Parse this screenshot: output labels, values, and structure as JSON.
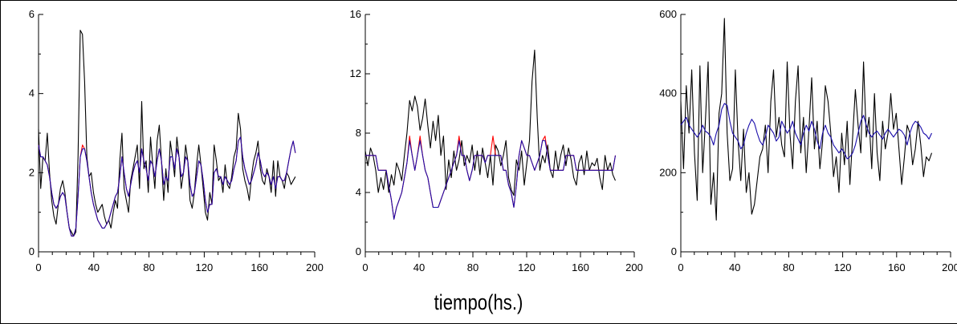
{
  "figure": {
    "xlabel": "tiempo(hs.)"
  },
  "colors": {
    "observed": "#000000",
    "model_a": "#ff0000",
    "model_b": "#1a0dab"
  },
  "chart_data": [
    {
      "type": "line",
      "xlim": [
        0,
        200
      ],
      "ylim": [
        0,
        6
      ],
      "xticks": [
        0,
        40,
        80,
        120,
        160,
        200
      ],
      "yticks": [
        0,
        2,
        4,
        6
      ],
      "grid": false,
      "series": [
        {
          "color": "#000000",
          "values": [
            3.1,
            1.6,
            2.4,
            2.3,
            3.0,
            2.0,
            1.3,
            0.9,
            0.7,
            1.2,
            1.6,
            1.8,
            1.5,
            1.0,
            0.6,
            0.5,
            0.4,
            0.5,
            2.4,
            5.6,
            5.5,
            4.3,
            2.4,
            1.9,
            2.0,
            1.5,
            1.2,
            1.0,
            1.1,
            1.2,
            0.9,
            0.7,
            0.8,
            0.6,
            1.0,
            1.3,
            1.1,
            2.3,
            3.0,
            1.6,
            1.3,
            1.0,
            1.8,
            2.1,
            2.4,
            2.7,
            1.6,
            3.8,
            2.1,
            2.3,
            1.5,
            2.9,
            2.2,
            1.6,
            2.8,
            3.2,
            2.3,
            1.3,
            2.1,
            1.5,
            2.8,
            2.4,
            1.9,
            2.9,
            2.4,
            1.6,
            2.0,
            2.7,
            2.3,
            1.3,
            1.1,
            1.5,
            2.2,
            2.7,
            2.2,
            1.6,
            1.0,
            0.8,
            1.5,
            1.2,
            2.7,
            2.3,
            1.8,
            1.9,
            1.5,
            2.2,
            1.7,
            1.6,
            1.9,
            2.4,
            2.6,
            3.5,
            3.1,
            2.1,
            1.8,
            1.6,
            1.3,
            1.9,
            2.3,
            2.5,
            2.8,
            2.1,
            1.8,
            1.7,
            2.1,
            1.9,
            1.5,
            2.3,
            1.4,
            2.3,
            1.9,
            1.8,
            1.6,
            2.0,
            1.9,
            1.7,
            1.8,
            1.9
          ]
        },
        {
          "color": "#ff0000",
          "values": [
            2.7,
            2.4,
            2.4,
            2.3,
            2.2,
            1.9,
            1.5,
            1.2,
            1.1,
            1.2,
            1.4,
            1.5,
            1.4,
            1.0,
            0.6,
            0.4,
            0.4,
            0.6,
            1.4,
            2.4,
            2.7,
            2.6,
            2.3,
            1.9,
            1.5,
            1.2,
            1.0,
            0.8,
            0.7,
            0.6,
            0.6,
            0.7,
            0.8,
            1.0,
            1.2,
            1.4,
            1.5,
            1.9,
            2.4,
            2.0,
            1.6,
            1.4,
            1.7,
            2.0,
            2.2,
            2.3,
            2.0,
            2.6,
            2.3,
            2.1,
            1.8,
            2.3,
            2.2,
            1.9,
            2.3,
            2.6,
            2.3,
            1.7,
            1.9,
            1.8,
            2.4,
            2.4,
            2.1,
            2.6,
            2.4,
            1.9,
            2.0,
            2.4,
            2.3,
            1.7,
            1.4,
            1.5,
            1.9,
            2.3,
            2.2,
            1.8,
            1.3,
            1.0,
            1.2,
            1.2,
            2.0,
            2.1,
            1.9,
            1.9,
            1.7,
            1.9,
            1.8,
            1.7,
            1.8,
            2.1,
            2.3,
            2.8,
            2.9,
            2.4,
            2.1,
            1.9,
            1.7,
            1.8,
            2.0,
            2.2,
            2.5,
            2.3,
            2.0,
            1.9,
            2.0,
            1.9,
            1.7,
            1.9,
            1.6,
            1.9,
            1.9,
            1.8,
            1.8,
            2.0,
            2.3,
            2.6,
            2.8,
            2.5
          ]
        },
        {
          "color": "#1a0dab",
          "values": [
            2.7,
            2.4,
            2.4,
            2.3,
            2.2,
            1.9,
            1.5,
            1.2,
            1.1,
            1.2,
            1.4,
            1.5,
            1.4,
            1.0,
            0.6,
            0.4,
            0.4,
            0.6,
            1.4,
            2.4,
            2.6,
            2.6,
            2.3,
            1.9,
            1.5,
            1.2,
            1.0,
            0.8,
            0.7,
            0.6,
            0.6,
            0.7,
            0.8,
            1.0,
            1.2,
            1.4,
            1.5,
            1.9,
            2.4,
            2.0,
            1.6,
            1.4,
            1.7,
            2.0,
            2.2,
            2.3,
            2.0,
            2.6,
            2.3,
            2.1,
            1.8,
            2.3,
            2.2,
            1.9,
            2.3,
            2.6,
            2.3,
            1.7,
            1.9,
            1.8,
            2.4,
            2.4,
            2.1,
            2.6,
            2.4,
            1.9,
            2.0,
            2.4,
            2.3,
            1.7,
            1.4,
            1.5,
            1.9,
            2.3,
            2.2,
            1.8,
            1.3,
            1.0,
            1.2,
            1.2,
            2.0,
            2.1,
            1.9,
            1.9,
            1.7,
            1.9,
            1.8,
            1.7,
            1.8,
            2.1,
            2.3,
            2.8,
            2.9,
            2.4,
            2.1,
            1.9,
            1.7,
            1.8,
            2.0,
            2.2,
            2.5,
            2.3,
            2.0,
            1.9,
            2.0,
            1.9,
            1.7,
            1.9,
            1.6,
            1.9,
            1.9,
            1.8,
            1.8,
            2.0,
            2.3,
            2.6,
            2.8,
            2.5
          ]
        }
      ]
    },
    {
      "type": "line",
      "xlim": [
        0,
        200
      ],
      "ylim": [
        0,
        16
      ],
      "xticks": [
        0,
        40,
        80,
        120,
        160,
        200
      ],
      "yticks": [
        0,
        4,
        8,
        12,
        16
      ],
      "grid": false,
      "series": [
        {
          "color": "#000000",
          "values": [
            6.8,
            5.8,
            7.0,
            6.5,
            5.5,
            4.0,
            5.0,
            4.2,
            5.5,
            4.0,
            5.2,
            4.5,
            6.0,
            5.5,
            4.8,
            6.5,
            8.0,
            10.2,
            9.5,
            10.5,
            9.8,
            8.2,
            9.0,
            10.3,
            8.5,
            7.0,
            8.8,
            7.5,
            9.2,
            6.5,
            7.8,
            4.2,
            6.2,
            5.0,
            6.8,
            5.5,
            6.2,
            7.5,
            5.8,
            6.5,
            6.0,
            7.2,
            5.5,
            6.8,
            5.2,
            7.0,
            6.0,
            5.0,
            6.5,
            4.5,
            7.2,
            6.8,
            5.8,
            6.5,
            7.5,
            5.0,
            4.2,
            3.8,
            6.2,
            5.5,
            6.8,
            4.5,
            6.0,
            7.5,
            11.5,
            13.6,
            9.0,
            5.5,
            6.5,
            6.0,
            7.2,
            5.5,
            5.0,
            6.8,
            5.5,
            6.5,
            7.2,
            5.8,
            7.0,
            6.2,
            5.0,
            4.5,
            6.0,
            6.5,
            5.2,
            6.8,
            5.5,
            6.0,
            5.8,
            6.3,
            5.0,
            4.2,
            6.5,
            5.5,
            6.0,
            5.2,
            4.8
          ]
        },
        {
          "color": "#ff0000",
          "values": [
            6.5,
            6.5,
            6.5,
            6.5,
            6.5,
            5.5,
            5.5,
            5.5,
            5.5,
            4.5,
            3.5,
            2.2,
            3.0,
            3.5,
            4.0,
            5.0,
            6.0,
            7.8,
            6.5,
            5.5,
            6.5,
            7.8,
            6.5,
            5.5,
            5.0,
            4.0,
            3.0,
            3.0,
            3.0,
            3.5,
            4.0,
            4.5,
            5.0,
            5.5,
            6.0,
            6.5,
            7.8,
            6.5,
            6.5,
            5.5,
            4.8,
            5.5,
            6.5,
            6.5,
            6.5,
            6.5,
            6.0,
            6.5,
            6.5,
            7.8,
            6.5,
            6.5,
            6.5,
            5.5,
            5.5,
            4.5,
            4.0,
            3.0,
            4.5,
            6.5,
            7.5,
            7.0,
            6.5,
            6.5,
            6.0,
            5.5,
            6.0,
            6.5,
            7.5,
            7.8,
            6.5,
            5.5,
            5.5,
            5.5,
            5.5,
            5.5,
            5.5,
            6.5,
            6.5,
            6.5,
            6.5,
            5.5,
            5.5,
            5.5,
            5.5,
            5.5,
            5.5,
            5.5,
            5.5,
            5.5,
            5.5,
            5.5,
            5.5,
            5.5,
            5.5,
            5.5,
            6.5
          ]
        },
        {
          "color": "#1a0dab",
          "values": [
            6.5,
            6.5,
            6.5,
            6.5,
            6.5,
            5.5,
            5.5,
            5.5,
            5.5,
            4.5,
            3.5,
            2.2,
            3.0,
            3.5,
            4.0,
            5.0,
            6.0,
            7.5,
            6.5,
            5.5,
            6.5,
            7.5,
            6.5,
            5.5,
            5.0,
            4.0,
            3.0,
            3.0,
            3.0,
            3.5,
            4.0,
            4.5,
            5.0,
            5.5,
            6.0,
            6.5,
            7.5,
            6.5,
            6.5,
            5.5,
            4.8,
            5.5,
            6.5,
            6.5,
            6.5,
            6.5,
            6.0,
            6.5,
            6.5,
            6.5,
            6.5,
            6.5,
            6.5,
            5.5,
            5.5,
            4.5,
            4.0,
            3.0,
            4.5,
            6.5,
            7.5,
            7.0,
            6.5,
            6.5,
            6.0,
            5.5,
            6.0,
            6.5,
            7.5,
            7.5,
            6.5,
            5.5,
            5.5,
            5.5,
            5.5,
            5.5,
            5.5,
            6.5,
            6.5,
            6.5,
            6.5,
            5.5,
            5.5,
            5.5,
            5.5,
            5.5,
            5.5,
            5.5,
            5.5,
            5.5,
            5.5,
            5.5,
            5.5,
            5.5,
            5.5,
            5.5,
            6.5
          ]
        }
      ]
    },
    {
      "type": "line",
      "xlim": [
        0,
        200
      ],
      "ylim": [
        0,
        600
      ],
      "xticks": [
        0,
        40,
        80,
        120,
        160,
        200
      ],
      "yticks": [
        0,
        200,
        400,
        600
      ],
      "grid": false,
      "series": [
        {
          "color": "#000000",
          "values": [
            380,
            210,
            420,
            300,
            460,
            250,
            130,
            470,
            200,
            330,
            480,
            120,
            200,
            80,
            350,
            400,
            590,
            300,
            180,
            210,
            460,
            280,
            180,
            310,
            150,
            200,
            95,
            120,
            180,
            240,
            260,
            320,
            200,
            380,
            460,
            290,
            340,
            270,
            240,
            480,
            300,
            210,
            380,
            470,
            250,
            340,
            200,
            310,
            440,
            260,
            330,
            210,
            280,
            420,
            380,
            300,
            190,
            240,
            150,
            300,
            220,
            330,
            170,
            290,
            410,
            320,
            250,
            480,
            290,
            340,
            210,
            400,
            250,
            180,
            330,
            260,
            300,
            400,
            310,
            350,
            260,
            170,
            240,
            320,
            300,
            220,
            260,
            330,
            270,
            190,
            240,
            230,
            250
          ]
        },
        {
          "color": "#1a0dab",
          "values": [
            320,
            330,
            340,
            320,
            310,
            300,
            290,
            300,
            320,
            305,
            300,
            290,
            270,
            300,
            320,
            360,
            375,
            370,
            330,
            300,
            290,
            280,
            260,
            270,
            300,
            320,
            335,
            325,
            300,
            280,
            270,
            290,
            320,
            310,
            300,
            280,
            290,
            330,
            315,
            300,
            310,
            330,
            300,
            285,
            270,
            300,
            320,
            305,
            330,
            310,
            280,
            260,
            300,
            320,
            300,
            290,
            270,
            260,
            250,
            260,
            250,
            235,
            240,
            250,
            270,
            300,
            330,
            345,
            320,
            300,
            290,
            300,
            305,
            295,
            285,
            300,
            310,
            300,
            290,
            300,
            310,
            305,
            295,
            270,
            300,
            320,
            330,
            325,
            315,
            300,
            295,
            285,
            300
          ]
        }
      ]
    }
  ]
}
